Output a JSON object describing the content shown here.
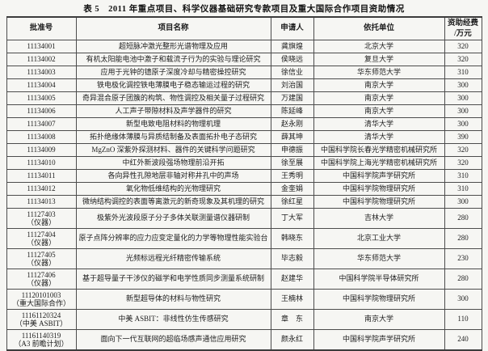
{
  "title": "表 5　2011 年重点项目、科学仪器基础研究专款项目及重大国际合作项目资助情况",
  "table": {
    "headers": {
      "approval_no": "批准号",
      "project": "项目名称",
      "applicant": "申请人",
      "institution": "依托单位",
      "amount_line1": "资助经费",
      "amount_line2": "/万元"
    },
    "rows": [
      {
        "approval_no": "11134001",
        "note": "",
        "project": "超短脉冲激光整形光谱物理及应用",
        "applicant": "龚旗煌",
        "institution": "北京大学",
        "amount": "320"
      },
      {
        "approval_no": "11134002",
        "note": "",
        "project": "有机太阳能电池中激子和载流子行为的实验与理论研究",
        "applicant": "侯晓远",
        "institution": "复旦大学",
        "amount": "320"
      },
      {
        "approval_no": "11134003",
        "note": "",
        "project": "应用于光钟的镱原子深度冷却与精密操控研究",
        "applicant": "徐信业",
        "institution": "华东师范大学",
        "amount": "310"
      },
      {
        "approval_no": "11134004",
        "note": "",
        "project": "铁电极化调控铁电薄膜电子稳态输运过程的研究",
        "applicant": "刘治国",
        "institution": "南京大学",
        "amount": "300"
      },
      {
        "approval_no": "11134005",
        "note": "",
        "project": "奇异混合原子团簇的构筑、物性调控及相关量子过程研究",
        "applicant": "万建国",
        "institution": "南京大学",
        "amount": "300"
      },
      {
        "approval_no": "11134006",
        "note": "",
        "project": "人工声子带隙材料及声学器件的研究",
        "applicant": "陈延峰",
        "institution": "南京大学",
        "amount": "300"
      },
      {
        "approval_no": "11134007",
        "note": "",
        "project": "新型电致电阻材料的物理机理",
        "applicant": "赵永刚",
        "institution": "清华大学",
        "amount": "300"
      },
      {
        "approval_no": "11134008",
        "note": "",
        "project": "拓扑绝缘体薄膜与异质结制备及表面拓扑电子态研究",
        "applicant": "薛其坤",
        "institution": "清华大学",
        "amount": "390"
      },
      {
        "approval_no": "11134009",
        "note": "",
        "project": "MgZnO 深紫外探测材料、器件的关键科学问题研究",
        "applicant": "申德振",
        "institution": "中国科学院长春光学精密机械研究所",
        "amount": "320"
      },
      {
        "approval_no": "11134010",
        "note": "",
        "project": "中红外新波段强场物理前沿开拓",
        "applicant": "徐至展",
        "institution": "中国科学院上海光学精密机械研究所",
        "amount": "320"
      },
      {
        "approval_no": "11134011",
        "note": "",
        "project": "各向异性孔隙地层非轴对称井孔中的声场",
        "applicant": "王秀明",
        "institution": "中国科学院声学研究所",
        "amount": "310"
      },
      {
        "approval_no": "11134012",
        "note": "",
        "project": "氧化物低维结构的光物理研究",
        "applicant": "金奎娟",
        "institution": "中国科学院物理研究所",
        "amount": "310"
      },
      {
        "approval_no": "11134013",
        "note": "",
        "project": "微纳结构调控的表面等离激元的新奇现象及其机理的研究",
        "applicant": "徐红星",
        "institution": "中国科学院物理研究所",
        "amount": "300"
      },
      {
        "approval_no": "11127403",
        "note": "（仪器）",
        "project": "极紫外光波段原子分子多体关联测量谱仪器研制",
        "applicant": "丁大军",
        "institution": "吉林大学",
        "amount": "280"
      },
      {
        "approval_no": "11127404",
        "note": "（仪器）",
        "project": "原子点阵分辨率的应力应变定量化的力学等物理性能实验台",
        "applicant": "韩晓东",
        "institution": "北京工业大学",
        "amount": "280"
      },
      {
        "approval_no": "11127405",
        "note": "（仪器）",
        "project": "光频标远程光纤精密传输系统",
        "applicant": "毕志毅",
        "institution": "华东师范大学",
        "amount": "230"
      },
      {
        "approval_no": "11127406",
        "note": "（仪器）",
        "project": "基于超导量子干涉仪的磁学和电学性质同步测量系统研制",
        "applicant": "赵建华",
        "institution": "中国科学院半导体研究所",
        "amount": "280"
      },
      {
        "approval_no": "11120101003",
        "note": "（重大国际合作）",
        "project": "新型超导体的材料与物性研究",
        "applicant": "王楠林",
        "institution": "中国科学院物理研究所",
        "amount": "300"
      },
      {
        "approval_no": "11161120324",
        "note": "（中美 ASBIT）",
        "project": "中美 ASBIT：非线性仿生传感研究",
        "applicant": "章　东",
        "institution": "南京大学",
        "amount": "110"
      },
      {
        "approval_no": "11161140319",
        "note": "（A3 前瞻计划）",
        "project": "面向下一代互联网的超临场感声通信应用研究",
        "applicant": "颜永红",
        "institution": "中国科学院声学研究所",
        "amount": "240"
      }
    ]
  }
}
